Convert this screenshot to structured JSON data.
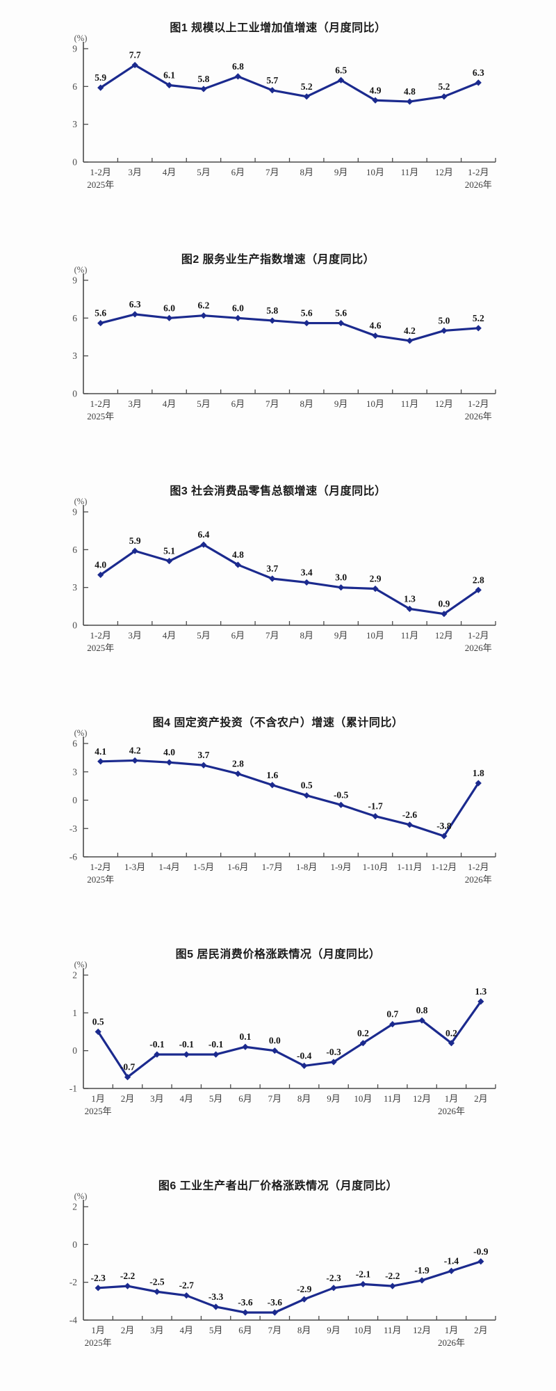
{
  "page": {
    "background": "#fdfdfd"
  },
  "style": {
    "line_color": "#1b2a8e",
    "marker_color": "#1b2a8e",
    "axis_color": "#4a4a4a",
    "value_label_color": "#141414",
    "tick_label_color": "#4d4d4d"
  },
  "chart_data": [
    {
      "type": "line",
      "title": "图1  规模以上工业增加值增速（月度同比）",
      "unit": "(%)",
      "categories": [
        "1-2月",
        "3月",
        "4月",
        "5月",
        "6月",
        "7月",
        "8月",
        "9月",
        "10月",
        "11月",
        "12月",
        "1-2月"
      ],
      "values": [
        5.9,
        7.7,
        6.1,
        5.8,
        6.8,
        5.7,
        5.2,
        6.5,
        4.9,
        4.8,
        5.2,
        6.3
      ],
      "ylim": [
        0,
        9
      ],
      "yticks": [
        0,
        3,
        6,
        9
      ],
      "year_marks": [
        {
          "index": 0,
          "label": "2025年"
        },
        {
          "index": 11,
          "label": "2026年"
        }
      ],
      "legend": "none",
      "grid": false
    },
    {
      "type": "line",
      "title": "图2  服务业生产指数增速（月度同比）",
      "unit": "(%)",
      "categories": [
        "1-2月",
        "3月",
        "4月",
        "5月",
        "6月",
        "7月",
        "8月",
        "9月",
        "10月",
        "11月",
        "12月",
        "1-2月"
      ],
      "values": [
        5.6,
        6.3,
        6.0,
        6.2,
        6.0,
        5.8,
        5.6,
        5.6,
        4.6,
        4.2,
        5.0,
        5.2
      ],
      "ylim": [
        0,
        9
      ],
      "yticks": [
        0,
        3,
        6,
        9
      ],
      "year_marks": [
        {
          "index": 0,
          "label": "2025年"
        },
        {
          "index": 11,
          "label": "2026年"
        }
      ],
      "legend": "none",
      "grid": false
    },
    {
      "type": "line",
      "title": "图3  社会消费品零售总额增速（月度同比）",
      "unit": "(%)",
      "categories": [
        "1-2月",
        "3月",
        "4月",
        "5月",
        "6月",
        "7月",
        "8月",
        "9月",
        "10月",
        "11月",
        "12月",
        "1-2月"
      ],
      "values": [
        4.0,
        5.9,
        5.1,
        6.4,
        4.8,
        3.7,
        3.4,
        3.0,
        2.9,
        1.3,
        0.9,
        2.8
      ],
      "ylim": [
        0,
        9
      ],
      "yticks": [
        0,
        3,
        6,
        9
      ],
      "year_marks": [
        {
          "index": 0,
          "label": "2025年"
        },
        {
          "index": 11,
          "label": "2026年"
        }
      ],
      "legend": "none",
      "grid": false
    },
    {
      "type": "line",
      "title": "图4  固定资产投资（不含农户）增速（累计同比）",
      "unit": "(%)",
      "categories": [
        "1-2月",
        "1-3月",
        "1-4月",
        "1-5月",
        "1-6月",
        "1-7月",
        "1-8月",
        "1-9月",
        "1-10月",
        "1-11月",
        "1-12月",
        "1-2月"
      ],
      "values": [
        4.1,
        4.2,
        4.0,
        3.7,
        2.8,
        1.6,
        0.5,
        -0.5,
        -1.7,
        -2.6,
        -3.8,
        1.8
      ],
      "ylim": [
        -6,
        6
      ],
      "yticks": [
        -6,
        -3,
        0,
        3,
        6
      ],
      "year_marks": [
        {
          "index": 0,
          "label": "2025年"
        },
        {
          "index": 11,
          "label": "2026年"
        }
      ],
      "legend": "none",
      "grid": false
    },
    {
      "type": "line",
      "title": "图5  居民消费价格涨跌情况（月度同比）",
      "unit": "(%)",
      "categories": [
        "1月",
        "2月",
        "3月",
        "4月",
        "5月",
        "6月",
        "7月",
        "8月",
        "9月",
        "10月",
        "11月",
        "12月",
        "1月",
        "2月"
      ],
      "values": [
        0.5,
        -0.7,
        -0.1,
        -0.1,
        -0.1,
        0.1,
        0.0,
        -0.4,
        -0.3,
        0.2,
        0.7,
        0.8,
        0.2,
        1.3
      ],
      "ylim": [
        -1,
        2
      ],
      "yticks": [
        -1,
        0,
        1,
        2
      ],
      "year_marks": [
        {
          "index": 0,
          "label": "2025年"
        },
        {
          "index": 12,
          "label": "2026年"
        }
      ],
      "legend": "none",
      "grid": false
    },
    {
      "type": "line",
      "title": "图6  工业生产者出厂价格涨跌情况（月度同比）",
      "unit": "(%)",
      "categories": [
        "1月",
        "2月",
        "3月",
        "4月",
        "5月",
        "6月",
        "7月",
        "8月",
        "9月",
        "10月",
        "11月",
        "12月",
        "1月",
        "2月"
      ],
      "values": [
        -2.3,
        -2.2,
        -2.5,
        -2.7,
        -3.3,
        -3.6,
        -3.6,
        -2.9,
        -2.3,
        -2.1,
        -2.2,
        -1.9,
        -1.4,
        -0.9
      ],
      "ylim": [
        -4,
        2
      ],
      "yticks": [
        -4,
        -2,
        0,
        2
      ],
      "year_marks": [
        {
          "index": 0,
          "label": "2025年"
        },
        {
          "index": 12,
          "label": "2026年"
        }
      ],
      "legend": "none",
      "grid": false
    }
  ]
}
